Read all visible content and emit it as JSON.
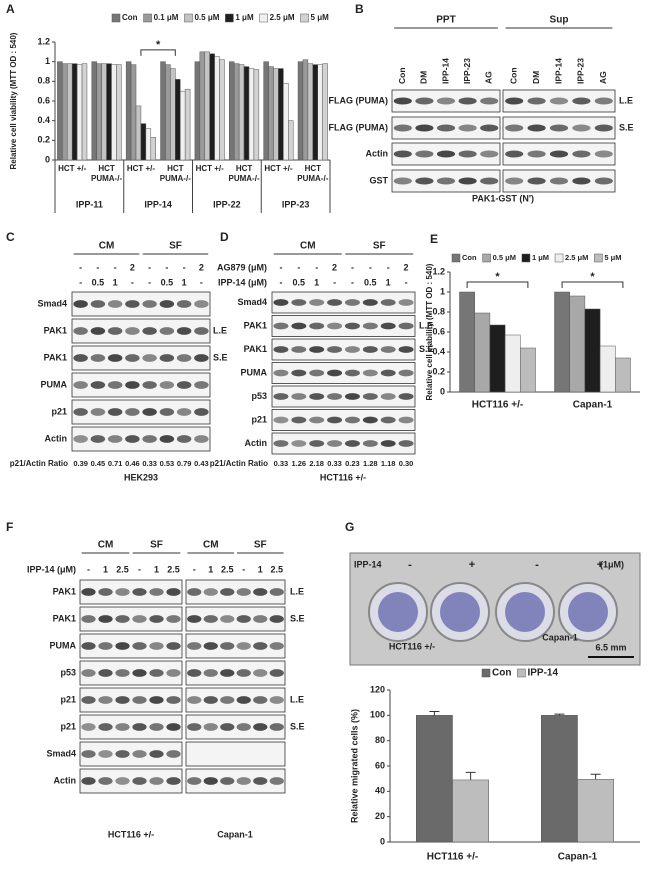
{
  "chart_data": [
    {
      "type": "bar",
      "letter": "A",
      "y_label": "Relative cell viability (MTT OD : 540)",
      "categories": [
        "HCT +/-",
        "HCT PUMA-/-",
        "HCT +/-",
        "HCT PUMA-/-",
        "HCT +/-",
        "HCT PUMA-/-",
        "HCT +/-",
        "HCT PUMA-/-"
      ],
      "groups": [
        "IPP-11",
        "IPP-14",
        "IPP-22",
        "IPP-23"
      ],
      "annotations": [
        "*"
      ],
      "series": [
        {
          "name": "Con",
          "color": "#767676",
          "values": [
            1,
            1,
            1,
            1,
            1,
            1,
            1,
            1
          ]
        },
        {
          "name": "0.1 μM",
          "color": "#9a9a9a",
          "values": [
            0.98,
            0.98,
            0.97,
            0.97,
            1.1,
            0.98,
            0.95,
            1.02
          ]
        },
        {
          "name": "0.5 μM",
          "color": "#c4c4c4",
          "values": [
            0.98,
            0.98,
            0.55,
            0.93,
            1.1,
            0.97,
            0.93,
            0.98
          ]
        },
        {
          "name": "1 μM",
          "color": "#1e1e1e",
          "values": [
            0.98,
            0.98,
            0.37,
            0.82,
            1.08,
            0.95,
            0.93,
            0.97
          ]
        },
        {
          "name": "2.5 μM",
          "color": "#f0f0f0",
          "values": [
            0.97,
            0.97,
            0.32,
            0.7,
            1.05,
            0.93,
            0.78,
            0.97
          ]
        },
        {
          "name": "5 μM",
          "color": "#d2d2d2",
          "values": [
            0.98,
            0.97,
            0.23,
            0.72,
            1.02,
            0.92,
            0.4,
            0.98
          ]
        }
      ],
      "ylim": [
        0,
        1.2
      ],
      "yticks": [
        0,
        0.2,
        0.4,
        0.6,
        0.8,
        1,
        1.2
      ]
    },
    {
      "type": "bar",
      "letter": "E",
      "y_label": "Relative cell viability (MTT OD : 540)",
      "categories": [
        "HCT116 +/-",
        "Capan-1"
      ],
      "annotations": [
        "*",
        "*"
      ],
      "series": [
        {
          "name": "Con",
          "color": "#767676",
          "values": [
            1,
            1
          ]
        },
        {
          "name": "0.5 μM",
          "color": "#a8a8a8",
          "values": [
            0.79,
            0.96
          ]
        },
        {
          "name": "1 μM",
          "color": "#1e1e1e",
          "values": [
            0.67,
            0.83
          ]
        },
        {
          "name": "2.5 μM",
          "color": "#eeeeee",
          "values": [
            0.57,
            0.46
          ]
        },
        {
          "name": "5 μM",
          "color": "#bcbcbc",
          "values": [
            0.44,
            0.34
          ]
        }
      ],
      "ylim": [
        0,
        1.2
      ],
      "yticks": [
        0,
        0.2,
        0.4,
        0.6,
        0.8,
        1,
        1.2
      ]
    },
    {
      "type": "bar",
      "letter": "G",
      "y_label": "Relative migrated cells (%)",
      "categories": [
        "HCT116 +/-",
        "Capan-1"
      ],
      "series": [
        {
          "name": "Con",
          "color": "#6a6a6a",
          "values": [
            100,
            100
          ],
          "errors": [
            3,
            1
          ]
        },
        {
          "name": "IPP-14",
          "color": "#bdbdbd",
          "values": [
            49,
            49.5
          ],
          "errors": [
            6,
            4
          ]
        }
      ],
      "ylim": [
        0,
        120
      ],
      "yticks": [
        0,
        20,
        40,
        60,
        80,
        100,
        120
      ]
    }
  ],
  "blots": {
    "B": {
      "letter": "B",
      "groups": [
        "PPT",
        "Sup"
      ],
      "lanes": [
        "Con",
        "DM",
        "IPP-14",
        "IPP-23",
        "AG",
        "Con",
        "DM",
        "IPP-14",
        "IPP-23",
        "AG"
      ],
      "rows": [
        {
          "label": "FLAG (PUMA)",
          "note": "L.E"
        },
        {
          "label": "FLAG (PUMA)",
          "note": "S.E"
        },
        {
          "label": "Actin"
        },
        {
          "label": "GST"
        }
      ],
      "captions": [
        "PAK1-GST (N')"
      ]
    },
    "C": {
      "letter": "C",
      "groups": [
        "CM",
        "SF"
      ],
      "treatments": [
        {
          "values": [
            "-",
            "-",
            "-",
            "2",
            "-",
            "-",
            "-",
            "2"
          ]
        },
        {
          "values": [
            "-",
            "0.5",
            "1",
            "-",
            "-",
            "0.5",
            "1",
            "-"
          ]
        }
      ],
      "rows": [
        {
          "label": "Smad4"
        },
        {
          "label": "PAK1",
          "note": "L.E"
        },
        {
          "label": "PAK1",
          "note": "S.E"
        },
        {
          "label": "PUMA"
        },
        {
          "label": "p21"
        },
        {
          "label": "Actin"
        }
      ],
      "ratio_label": "p21/Actin Ratio",
      "ratios": [
        "0.39",
        "0.45",
        "0.71",
        "0.46",
        "0.33",
        "0.53",
        "0.79",
        "0.43"
      ],
      "captions": [
        "HEK293"
      ]
    },
    "D": {
      "letter": "D",
      "groups": [
        "CM",
        "SF"
      ],
      "treatments": [
        {
          "label": "AG879 (μM)",
          "values": [
            "-",
            "-",
            "-",
            "2",
            "-",
            "-",
            "-",
            "2"
          ]
        },
        {
          "label": "IPP-14 (μM)",
          "values": [
            "-",
            "0.5",
            "1",
            "-",
            "-",
            "0.5",
            "1",
            "-"
          ]
        }
      ],
      "rows": [
        {
          "label": "Smad4"
        },
        {
          "label": "PAK1",
          "note": "L.E"
        },
        {
          "label": "PAK1",
          "note": "S.E"
        },
        {
          "label": "PUMA"
        },
        {
          "label": "p53"
        },
        {
          "label": "p21"
        },
        {
          "label": "Actin"
        }
      ],
      "ratio_label": "p21/Actin Ratio",
      "ratios": [
        "0.33",
        "1.26",
        "2.18",
        "0.33",
        "0.23",
        "1.28",
        "1.18",
        "0.30"
      ],
      "captions": [
        "HCT116 +/-"
      ]
    },
    "F": {
      "letter": "F",
      "groups": [
        "CM",
        "SF",
        "CM",
        "SF"
      ],
      "treatments": [
        {
          "label": "IPP-14 (μM)",
          "values": [
            "-",
            "1",
            "2.5",
            "-",
            "1",
            "2.5",
            "-",
            "1",
            "2.5",
            "-",
            "1",
            "2.5"
          ]
        }
      ],
      "rows": [
        {
          "label": "PAK1",
          "note": "L.E"
        },
        {
          "label": "PAK1",
          "note": "S.E"
        },
        {
          "label": "PUMA"
        },
        {
          "label": "p53"
        },
        {
          "label": "p21",
          "note": "L.E"
        },
        {
          "label": "p21",
          "note": "S.E"
        },
        {
          "label": "Smad4"
        },
        {
          "label": "Actin"
        }
      ],
      "captions": [
        "HCT116 +/-",
        "Capan-1"
      ]
    }
  },
  "photo": {
    "treatment_label": "IPP-14",
    "signs": [
      "-",
      "+",
      "-",
      "+"
    ],
    "dose": "(1μM)",
    "labels": [
      "HCT116 +/-",
      "Capan-1"
    ],
    "scale": "6.5 mm"
  }
}
